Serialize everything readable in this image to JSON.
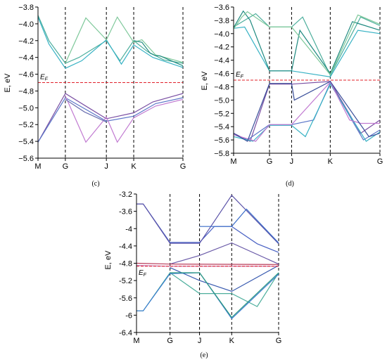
{
  "chart_data": [
    {
      "type": "line",
      "caption": "(c)",
      "ylabel": "E, eV",
      "fermi_label": "E_F",
      "fermi_level": -4.7,
      "ylim": [
        -5.6,
        -3.8
      ],
      "yticks": [
        -3.8,
        -4.0,
        -4.2,
        -4.4,
        -4.6,
        -4.8,
        -5.0,
        -5.2,
        -5.4,
        -5.6
      ],
      "ytick_labels": [
        "−3.8",
        "−4.0",
        "−4.2",
        "−4.4",
        "−4.6",
        "−4.8",
        "−5.0",
        "−5.2",
        "−5.4",
        "−5.6"
      ],
      "xlim": [
        0,
        5.3
      ],
      "kpoints": [
        {
          "label": "M",
          "x": 0
        },
        {
          "label": "G",
          "x": 1.0
        },
        {
          "label": "J",
          "x": 2.5
        },
        {
          "label": "K",
          "x": 3.5
        },
        {
          "label": "G",
          "x": 5.3
        }
      ],
      "series": [
        {
          "color": "#4cae9c",
          "points": [
            [
              0,
              -3.9
            ],
            [
              0.4,
              -4.2
            ],
            [
              1.0,
              -4.47
            ],
            [
              1.5,
              -4.4
            ],
            [
              2.5,
              -4.2
            ],
            [
              3.0,
              -4.44
            ],
            [
              3.5,
              -4.2
            ],
            [
              4.0,
              -4.33
            ],
            [
              4.6,
              -4.43
            ],
            [
              5.3,
              -4.47
            ]
          ]
        },
        {
          "color": "#38b2c4",
          "points": [
            [
              0,
              -3.92
            ],
            [
              0.4,
              -4.24
            ],
            [
              1.0,
              -4.53
            ],
            [
              1.6,
              -4.44
            ],
            [
              2.5,
              -4.19
            ],
            [
              3.05,
              -4.48
            ],
            [
              3.5,
              -4.25
            ],
            [
              4.2,
              -4.4
            ],
            [
              5.3,
              -4.52
            ]
          ]
        },
        {
          "color": "#7ec89a",
          "points": [
            [
              1.0,
              -4.47
            ],
            [
              1.75,
              -3.93
            ],
            [
              2.5,
              -4.19
            ],
            [
              2.9,
              -3.92
            ],
            [
              3.5,
              -4.22
            ],
            [
              3.8,
              -4.19
            ],
            [
              4.3,
              -4.37
            ],
            [
              5.3,
              -4.46
            ]
          ]
        },
        {
          "color": "#1f8a80",
          "points": [
            [
              3.5,
              -4.2
            ],
            [
              3.8,
              -4.22
            ],
            [
              4.1,
              -4.35
            ],
            [
              4.3,
              -4.38
            ],
            [
              4.45,
              -4.38
            ],
            [
              5.3,
              -4.5
            ]
          ]
        },
        {
          "color": "#7a4fa3",
          "points": [
            [
              0,
              -5.41
            ],
            [
              1.0,
              -4.83
            ],
            [
              2.5,
              -5.13
            ],
            [
              3.5,
              -5.06
            ],
            [
              4.2,
              -4.93
            ],
            [
              5.3,
              -4.83
            ]
          ]
        },
        {
          "color": "#5b76c8",
          "points": [
            [
              0,
              -5.41
            ],
            [
              1.0,
              -4.88
            ],
            [
              2.5,
              -5.16
            ],
            [
              3.5,
              -5.1
            ],
            [
              4.3,
              -4.95
            ],
            [
              5.3,
              -4.88
            ]
          ]
        },
        {
          "color": "#c17ad1",
          "points": [
            [
              1.0,
              -4.86
            ],
            [
              1.75,
              -5.41
            ],
            [
              2.5,
              -5.11
            ],
            [
              2.9,
              -5.41
            ],
            [
              3.5,
              -5.12
            ],
            [
              4.3,
              -4.98
            ],
            [
              5.3,
              -4.9
            ]
          ]
        },
        {
          "color": "#6a6fb0",
          "points": [
            [
              1.0,
              -4.9
            ],
            [
              1.7,
              -5.05
            ],
            [
              2.5,
              -5.17
            ]
          ]
        }
      ]
    },
    {
      "type": "line",
      "caption": "(d)",
      "ylabel": "E, eV",
      "fermi_label": "E_F",
      "fermi_level": -4.7,
      "ylim": [
        -5.8,
        -3.6
      ],
      "yticks": [
        -3.6,
        -3.8,
        -4.0,
        -4.2,
        -4.4,
        -4.6,
        -4.8,
        -5.0,
        -5.2,
        -5.4,
        -5.6,
        -5.8
      ],
      "ytick_labels": [
        "−3.6",
        "−3.8",
        "−4.0",
        "−4.2",
        "−4.4",
        "−4.6",
        "−4.8",
        "−5.0",
        "−5.2",
        "−5.4",
        "−5.6",
        "−5.8"
      ],
      "xlim": [
        0,
        5.3
      ],
      "kpoints": [
        {
          "label": "M",
          "x": 0
        },
        {
          "label": "G",
          "x": 1.3
        },
        {
          "label": "J",
          "x": 2.1
        },
        {
          "label": "K",
          "x": 3.5
        },
        {
          "label": "G",
          "x": 5.3
        }
      ],
      "series": [
        {
          "color": "#4cae9c",
          "points": [
            [
              0,
              -3.9
            ],
            [
              0.4,
              -3.8
            ],
            [
              0.8,
              -3.7
            ],
            [
              1.3,
              -3.9
            ],
            [
              2.1,
              -3.9
            ],
            [
              2.5,
              -3.75
            ],
            [
              3.5,
              -4.63
            ],
            [
              4.6,
              -3.75
            ],
            [
              5.3,
              -3.88
            ]
          ]
        },
        {
          "color": "#38b2c4",
          "points": [
            [
              0,
              -3.92
            ],
            [
              0.4,
              -3.9
            ],
            [
              1.3,
              -4.56
            ],
            [
              2.1,
              -4.56
            ],
            [
              3.5,
              -4.65
            ],
            [
              4.5,
              -3.95
            ],
            [
              5.3,
              -4.0
            ]
          ]
        },
        {
          "color": "#1f8a80",
          "points": [
            [
              0,
              -3.91
            ],
            [
              0.35,
              -3.66
            ],
            [
              0.6,
              -3.8
            ],
            [
              1.3,
              -4.56
            ],
            [
              2.1,
              -4.56
            ],
            [
              2.4,
              -3.95
            ],
            [
              3.5,
              -4.6
            ],
            [
              4.3,
              -3.82
            ],
            [
              5.3,
              -3.95
            ]
          ]
        },
        {
          "color": "#7ec89a",
          "points": [
            [
              0,
              -3.93
            ],
            [
              0.3,
              -3.75
            ],
            [
              0.5,
              -3.67
            ],
            [
              1.3,
              -3.9
            ],
            [
              2.1,
              -3.9
            ],
            [
              3.5,
              -4.62
            ],
            [
              4.5,
              -3.72
            ],
            [
              5.3,
              -3.86
            ]
          ]
        },
        {
          "color": "#7a4fa3",
          "points": [
            [
              0,
              -5.5
            ],
            [
              0.6,
              -5.62
            ],
            [
              1.3,
              -4.76
            ],
            [
              2.1,
              -4.76
            ],
            [
              3.5,
              -4.72
            ],
            [
              4.6,
              -5.5
            ],
            [
              5.3,
              -5.3
            ]
          ]
        },
        {
          "color": "#5b76c8",
          "points": [
            [
              0,
              -5.52
            ],
            [
              0.5,
              -5.6
            ],
            [
              1.3,
              -5.37
            ],
            [
              2.1,
              -5.37
            ],
            [
              2.9,
              -5.3
            ],
            [
              3.5,
              -4.74
            ],
            [
              4.7,
              -5.6
            ],
            [
              5.3,
              -5.45
            ]
          ]
        },
        {
          "color": "#38b2c4",
          "points": [
            [
              0,
              -5.55
            ],
            [
              0.7,
              -5.62
            ],
            [
              1.3,
              -5.38
            ],
            [
              2.1,
              -5.38
            ],
            [
              2.6,
              -5.55
            ],
            [
              3.5,
              -4.76
            ],
            [
              4.8,
              -5.62
            ],
            [
              5.3,
              -5.48
            ]
          ]
        },
        {
          "color": "#c17ad1",
          "points": [
            [
              0,
              -5.52
            ],
            [
              0.8,
              -5.62
            ],
            [
              1.3,
              -5.37
            ],
            [
              2.1,
              -5.37
            ],
            [
              3.5,
              -4.73
            ],
            [
              4.2,
              -5.3
            ],
            [
              4.6,
              -5.35
            ],
            [
              5.3,
              -5.35
            ]
          ]
        },
        {
          "color": "#3a4f9a",
          "points": [
            [
              0,
              -5.5
            ],
            [
              0.5,
              -5.62
            ],
            [
              1.3,
              -4.75
            ],
            [
              2.1,
              -4.75
            ],
            [
              2.2,
              -5.0
            ],
            [
              3.5,
              -4.72
            ],
            [
              4.9,
              -5.55
            ],
            [
              5.3,
              -5.5
            ]
          ]
        }
      ]
    },
    {
      "type": "line",
      "caption": "(e)",
      "ylabel": "E, eV",
      "fermi_label": "E_F",
      "fermi_level": -4.87,
      "ylim": [
        -6.4,
        -3.2
      ],
      "yticks": [
        -3.2,
        -3.6,
        -4.0,
        -4.4,
        -4.8,
        -5.2,
        -5.6,
        -6.0,
        -6.4
      ],
      "ytick_labels": [
        "-3.2",
        "-3.6",
        "-4",
        "-4.4",
        "-4.8",
        "-5.2",
        "-5.6",
        "-6",
        "-6.4"
      ],
      "xlim": [
        0,
        5.3
      ],
      "kpoints": [
        {
          "label": "M",
          "x": 0
        },
        {
          "label": "G",
          "x": 1.25
        },
        {
          "label": "J",
          "x": 2.35
        },
        {
          "label": "K",
          "x": 3.55
        },
        {
          "label": "G",
          "x": 5.3
        }
      ],
      "series": [
        {
          "color": "#4a62c4",
          "points": [
            [
              0,
              -3.43
            ],
            [
              0.25,
              -3.43
            ],
            [
              1.25,
              -4.32
            ],
            [
              2.35,
              -4.32
            ],
            [
              2.9,
              -3.95
            ],
            [
              3.55,
              -3.95
            ],
            [
              4.5,
              -4.35
            ],
            [
              5.3,
              -4.55
            ]
          ]
        },
        {
          "color": "#5a52a8",
          "points": [
            [
              0,
              -3.43
            ],
            [
              0.25,
              -3.43
            ],
            [
              1.25,
              -4.34
            ],
            [
              2.35,
              -4.34
            ],
            [
              3.55,
              -3.23
            ],
            [
              5.3,
              -4.35
            ]
          ]
        },
        {
          "color": "#3a6bc8",
          "points": [
            [
              2.35,
              -3.95
            ],
            [
              3.55,
              -3.95
            ],
            [
              4.1,
              -3.55
            ],
            [
              5.3,
              -4.33
            ]
          ]
        },
        {
          "color": "#6a5aa8",
          "points": [
            [
              1.25,
              -4.82
            ],
            [
              2.35,
              -4.62
            ],
            [
              3.55,
              -4.33
            ],
            [
              5.3,
              -4.82
            ]
          ]
        },
        {
          "color": "#b83a5a",
          "points": [
            [
              0,
              -4.8
            ],
            [
              1.25,
              -4.82
            ],
            [
              5.3,
              -4.83
            ]
          ]
        },
        {
          "color": "#c870b0",
          "points": [
            [
              0,
              -4.85
            ],
            [
              1.25,
              -4.87
            ],
            [
              5.3,
              -4.87
            ]
          ]
        },
        {
          "color": "#3a5bb0",
          "points": [
            [
              1.25,
              -4.9
            ],
            [
              2.35,
              -5.2
            ],
            [
              3.55,
              -5.45
            ],
            [
              5.3,
              -4.85
            ]
          ]
        },
        {
          "color": "#4cae9c",
          "points": [
            [
              0,
              -5.9
            ],
            [
              0.25,
              -5.9
            ],
            [
              1.25,
              -5.02
            ],
            [
              2.35,
              -5.5
            ],
            [
              3.55,
              -5.5
            ],
            [
              4.5,
              -5.8
            ],
            [
              5.3,
              -5.02
            ]
          ]
        },
        {
          "color": "#3a7bd0",
          "points": [
            [
              0,
              -5.9
            ],
            [
              0.25,
              -5.9
            ],
            [
              1.25,
              -5.04
            ],
            [
              2.35,
              -5.02
            ],
            [
              2.9,
              -5.5
            ],
            [
              3.55,
              -6.08
            ],
            [
              5.3,
              -5.05
            ]
          ]
        },
        {
          "color": "#2e9a80",
          "points": [
            [
              1.25,
              -5.02
            ],
            [
              2.35,
              -5.02
            ],
            [
              3.55,
              -6.05
            ],
            [
              5.3,
              -5.02
            ]
          ]
        }
      ]
    }
  ]
}
